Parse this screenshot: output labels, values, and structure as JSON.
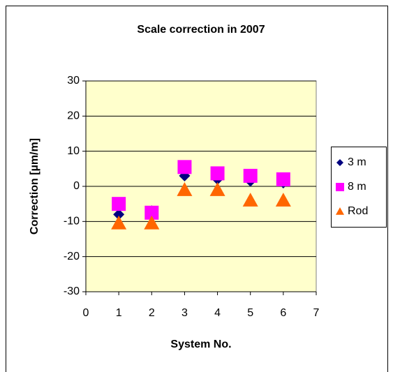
{
  "chart_data": {
    "type": "scatter",
    "title": "Scale correction in 2007",
    "xlabel": "System No.",
    "ylabel": "Correction [µm/m]",
    "xlim": [
      0,
      7
    ],
    "xticks": [
      0,
      1,
      2,
      3,
      4,
      5,
      6,
      7
    ],
    "ylim": [
      -30,
      30
    ],
    "yticks": [
      -30,
      -20,
      -10,
      0,
      10,
      20,
      30
    ],
    "grid": true,
    "legend": "right",
    "series": [
      {
        "name": "3 m",
        "color": "#000080",
        "marker": "diamond",
        "x": [
          1,
          2,
          3,
          4,
          5,
          6
        ],
        "values": [
          -8,
          -7,
          3,
          2,
          1.5,
          1
        ]
      },
      {
        "name": "8 m",
        "color": "#ff00ff",
        "marker": "square",
        "x": [
          1,
          2,
          3,
          4,
          5,
          6
        ],
        "values": [
          -5,
          -7.5,
          5.5,
          3.7,
          3,
          2
        ]
      },
      {
        "name": "Rod",
        "color": "#ff6600",
        "marker": "triangle",
        "x": [
          1,
          2,
          3,
          4,
          5,
          6
        ],
        "values": [
          -10.5,
          -10.5,
          -1,
          -1,
          -4,
          -4
        ]
      }
    ]
  }
}
